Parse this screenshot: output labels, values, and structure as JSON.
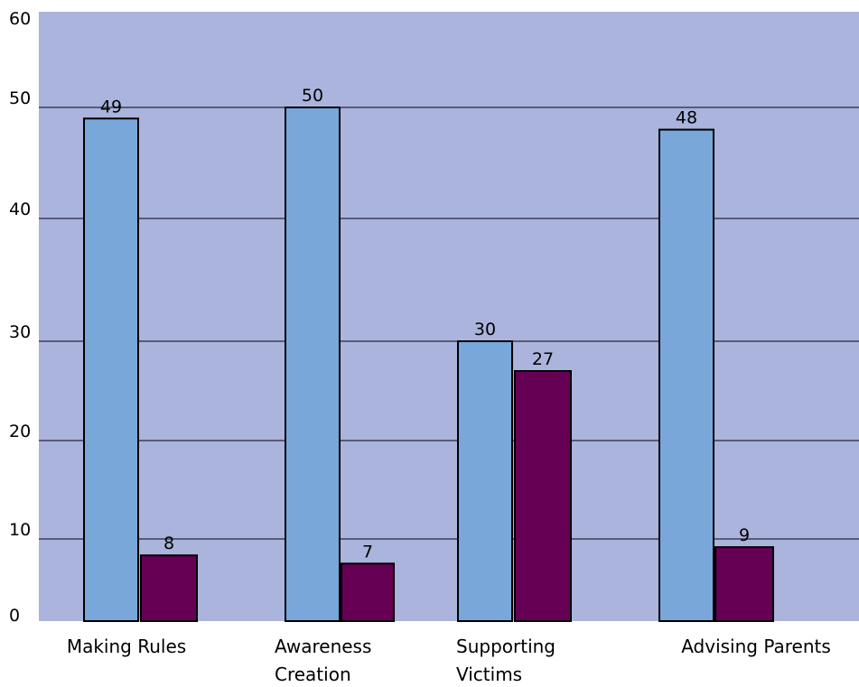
{
  "chart_data": {
    "type": "bar",
    "categories": [
      [
        "Making Rules"
      ],
      [
        "Awareness",
        "Creation"
      ],
      [
        "Supporting",
        "Victims"
      ],
      [
        "Advising Parents"
      ]
    ],
    "series": [
      {
        "values": [
          49,
          50,
          30,
          48
        ],
        "color": "#7aa7d9"
      },
      {
        "values": [
          8,
          7,
          27,
          9
        ],
        "color": "#660055"
      }
    ],
    "ylim": [
      0,
      60
    ],
    "yticks": [
      0,
      10,
      20,
      30,
      40,
      50,
      60
    ],
    "grid": true,
    "plot_background": "#aab4dc",
    "gridline_color": "#5a5a78",
    "legend": "none"
  }
}
